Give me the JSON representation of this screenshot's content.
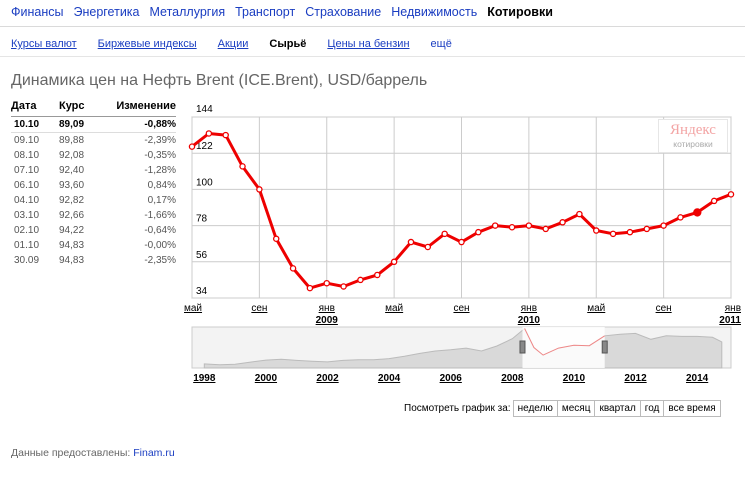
{
  "nav": {
    "items": [
      "Финансы",
      "Энергетика",
      "Металлургия",
      "Транспорт",
      "Страхование",
      "Недвижимость",
      "Котировки"
    ],
    "active_index": 6
  },
  "subnav": {
    "items": [
      "Курсы валют",
      "Биржевые индексы",
      "Акции",
      "Сырьё",
      "Цены на бензин",
      "ещё"
    ],
    "active_index": 3
  },
  "page_title": "Динамика цен на Нефть Brent (ICE.Brent), USD/баррель",
  "quotes": {
    "headers": [
      "Дата",
      "Курс",
      "Изменение"
    ],
    "rows": [
      {
        "date": "10.10",
        "rate": "89,09",
        "change": "-0,88%"
      },
      {
        "date": "09.10",
        "rate": "89,88",
        "change": "-2,39%"
      },
      {
        "date": "08.10",
        "rate": "92,08",
        "change": "-0,35%"
      },
      {
        "date": "07.10",
        "rate": "92,40",
        "change": "-1,28%"
      },
      {
        "date": "06.10",
        "rate": "93,60",
        "change": "0,84%"
      },
      {
        "date": "04.10",
        "rate": "92,82",
        "change": "0,17%"
      },
      {
        "date": "03.10",
        "rate": "92,66",
        "change": "-1,66%"
      },
      {
        "date": "02.10",
        "rate": "94,22",
        "change": "-0,64%"
      },
      {
        "date": "01.10",
        "rate": "94,83",
        "change": "-0,00%"
      },
      {
        "date": "30.09",
        "rate": "94,83",
        "change": "-2,35%"
      }
    ]
  },
  "logo": {
    "line1": "Яндекс",
    "line2": "котировки"
  },
  "period": {
    "label": "Посмотреть график за:",
    "buttons": [
      "неделю",
      "месяц",
      "квартал",
      "год",
      "все время"
    ]
  },
  "footer": {
    "text": "Данные предоставлены:",
    "link": "Finam.ru"
  },
  "colors": {
    "line": "#ee0000",
    "link": "#1a3dc1",
    "grid": "#cccccc",
    "overview_fill": "#d9d9d9"
  },
  "chart_data": [
    {
      "type": "line",
      "ylim": [
        34,
        144
      ],
      "yticks": [
        34,
        56,
        78,
        100,
        122,
        144
      ],
      "xticks": [
        {
          "label": "май",
          "year": ""
        },
        {
          "label": "сен",
          "year": ""
        },
        {
          "label": "янв",
          "year": "2009"
        },
        {
          "label": "май",
          "year": ""
        },
        {
          "label": "сен",
          "year": ""
        },
        {
          "label": "янв",
          "year": "2010"
        },
        {
          "label": "май",
          "year": ""
        },
        {
          "label": "сен",
          "year": ""
        },
        {
          "label": "янв",
          "year": "2011"
        }
      ],
      "x": [
        "2008-05",
        "2008-06",
        "2008-07",
        "2008-08",
        "2008-09",
        "2008-10",
        "2008-11",
        "2008-12",
        "2009-01",
        "2009-02",
        "2009-03",
        "2009-04",
        "2009-05",
        "2009-06",
        "2009-07",
        "2009-08",
        "2009-09",
        "2009-10",
        "2009-11",
        "2009-12",
        "2010-01",
        "2010-02",
        "2010-03",
        "2010-04",
        "2010-05",
        "2010-06",
        "2010-07",
        "2010-08",
        "2010-09",
        "2010-10",
        "2010-11",
        "2010-12",
        "2011-01"
      ],
      "series": [
        {
          "values": [
            126,
            134,
            133,
            114,
            100,
            70,
            52,
            40,
            43,
            41,
            45,
            48,
            56,
            68,
            65,
            73,
            68,
            74,
            78,
            77,
            78,
            76,
            80,
            85,
            75,
            73,
            74,
            76,
            78,
            83,
            86,
            93,
            97
          ],
          "highlight_index": 30
        }
      ]
    },
    {
      "type": "area",
      "xticks": [
        "1998",
        "2000",
        "2002",
        "2004",
        "2006",
        "2008",
        "2010",
        "2012",
        "2014"
      ],
      "x": [
        1998,
        1998.5,
        1999,
        1999.5,
        2000,
        2000.5,
        2001,
        2001.5,
        2002,
        2002.5,
        2003,
        2003.5,
        2004,
        2004.5,
        2005,
        2005.5,
        2006,
        2006.5,
        2007,
        2007.5,
        2008,
        2008.4,
        2008.7,
        2009,
        2009.5,
        2010,
        2010.5,
        2011,
        2011.5,
        2012,
        2012.5,
        2013,
        2013.5,
        2014,
        2014.5,
        2014.8
      ],
      "values": [
        14,
        11,
        13,
        20,
        27,
        30,
        26,
        23,
        21,
        26,
        28,
        28,
        32,
        40,
        50,
        58,
        62,
        68,
        58,
        75,
        100,
        135,
        70,
        44,
        68,
        78,
        76,
        110,
        115,
        118,
        98,
        110,
        108,
        108,
        105,
        89
      ],
      "selected_range": [
        "2008-05",
        "2011-01"
      ]
    }
  ]
}
